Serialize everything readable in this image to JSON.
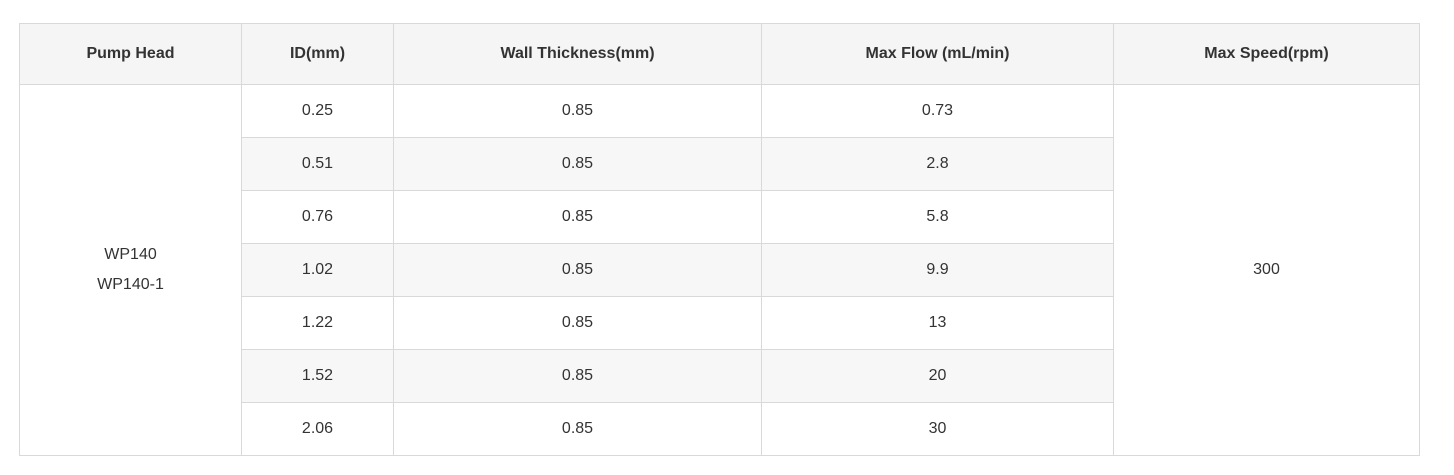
{
  "table": {
    "headers": [
      "Pump Head",
      "ID(mm)",
      "Wall Thickness(mm)",
      "Max Flow (mL/min)",
      "Max Speed(rpm)"
    ],
    "pump_head": [
      "WP140",
      "WP140-1"
    ],
    "max_speed": "300",
    "rows": [
      {
        "id": "0.25",
        "wall": "0.85",
        "flow": "0.73"
      },
      {
        "id": "0.51",
        "wall": "0.85",
        "flow": "2.8"
      },
      {
        "id": "0.76",
        "wall": "0.85",
        "flow": "5.8"
      },
      {
        "id": "1.02",
        "wall": "0.85",
        "flow": "9.9"
      },
      {
        "id": "1.22",
        "wall": "0.85",
        "flow": "13"
      },
      {
        "id": "1.52",
        "wall": "0.85",
        "flow": "20"
      },
      {
        "id": "2.06",
        "wall": "0.85",
        "flow": "30"
      }
    ]
  }
}
